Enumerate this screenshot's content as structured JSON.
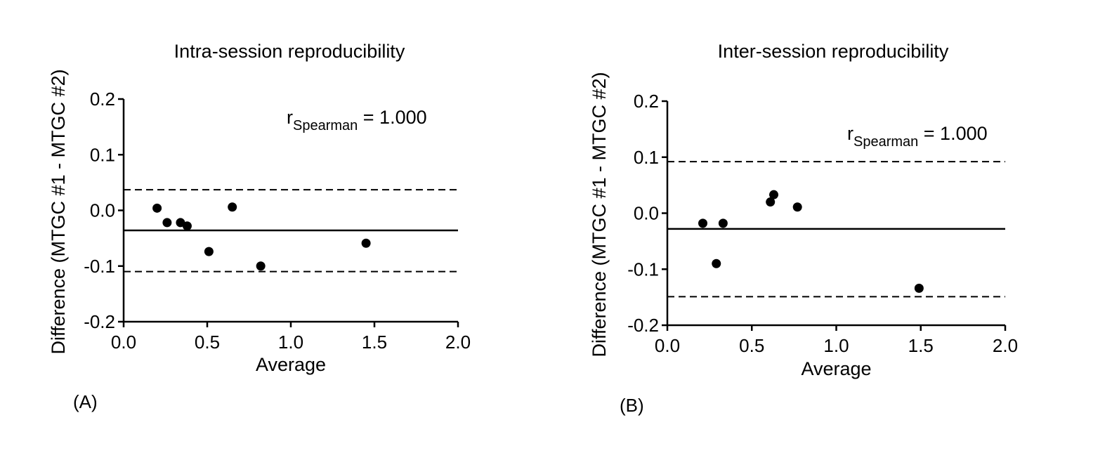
{
  "chart_data": [
    {
      "type": "scatter",
      "panel_label": "(A)",
      "title": "Intra-session reproducibility",
      "xlabel": "Average",
      "ylabel": "Difference (MTGC #1 - MTGC #2)",
      "xlim": [
        0.0,
        2.0
      ],
      "ylim": [
        -0.2,
        0.2
      ],
      "x_ticks": [
        "0.0",
        "0.5",
        "1.0",
        "1.5",
        "2.0"
      ],
      "y_ticks": [
        "0.2",
        "0.1",
        "0.0",
        "-0.1",
        "-0.2"
      ],
      "points": [
        {
          "x": 0.2,
          "y": 0.004
        },
        {
          "x": 0.26,
          "y": -0.022
        },
        {
          "x": 0.34,
          "y": -0.022
        },
        {
          "x": 0.38,
          "y": -0.028
        },
        {
          "x": 0.51,
          "y": -0.074
        },
        {
          "x": 0.65,
          "y": 0.006
        },
        {
          "x": 0.82,
          "y": -0.1
        },
        {
          "x": 1.45,
          "y": -0.059
        }
      ],
      "bias": -0.036,
      "upper_loa": 0.037,
      "lower_loa": -0.11,
      "annotation": {
        "prefix": "r",
        "subscript": "Spearman",
        "suffix": " = 1.000"
      },
      "grid": false
    },
    {
      "type": "scatter",
      "panel_label": "(B)",
      "title": "Inter-session reproducibility",
      "xlabel": "Average",
      "ylabel": "Difference (MTGC #1 - MTGC #2)",
      "xlim": [
        0.0,
        2.0
      ],
      "ylim": [
        -0.2,
        0.2
      ],
      "x_ticks": [
        "0.0",
        "0.5",
        "1.0",
        "1.5",
        "2.0"
      ],
      "y_ticks": [
        "0.2",
        "0.1",
        "0.0",
        "-0.1",
        "-0.2"
      ],
      "points": [
        {
          "x": 0.21,
          "y": -0.018
        },
        {
          "x": 0.29,
          "y": -0.09
        },
        {
          "x": 0.33,
          "y": -0.018
        },
        {
          "x": 0.61,
          "y": 0.02
        },
        {
          "x": 0.63,
          "y": 0.033
        },
        {
          "x": 0.77,
          "y": 0.011
        },
        {
          "x": 1.49,
          "y": -0.134
        }
      ],
      "bias": -0.028,
      "upper_loa": 0.092,
      "lower_loa": -0.149,
      "annotation": {
        "prefix": "r",
        "subscript": "Spearman",
        "suffix": " = 1.000"
      },
      "grid": false
    }
  ]
}
